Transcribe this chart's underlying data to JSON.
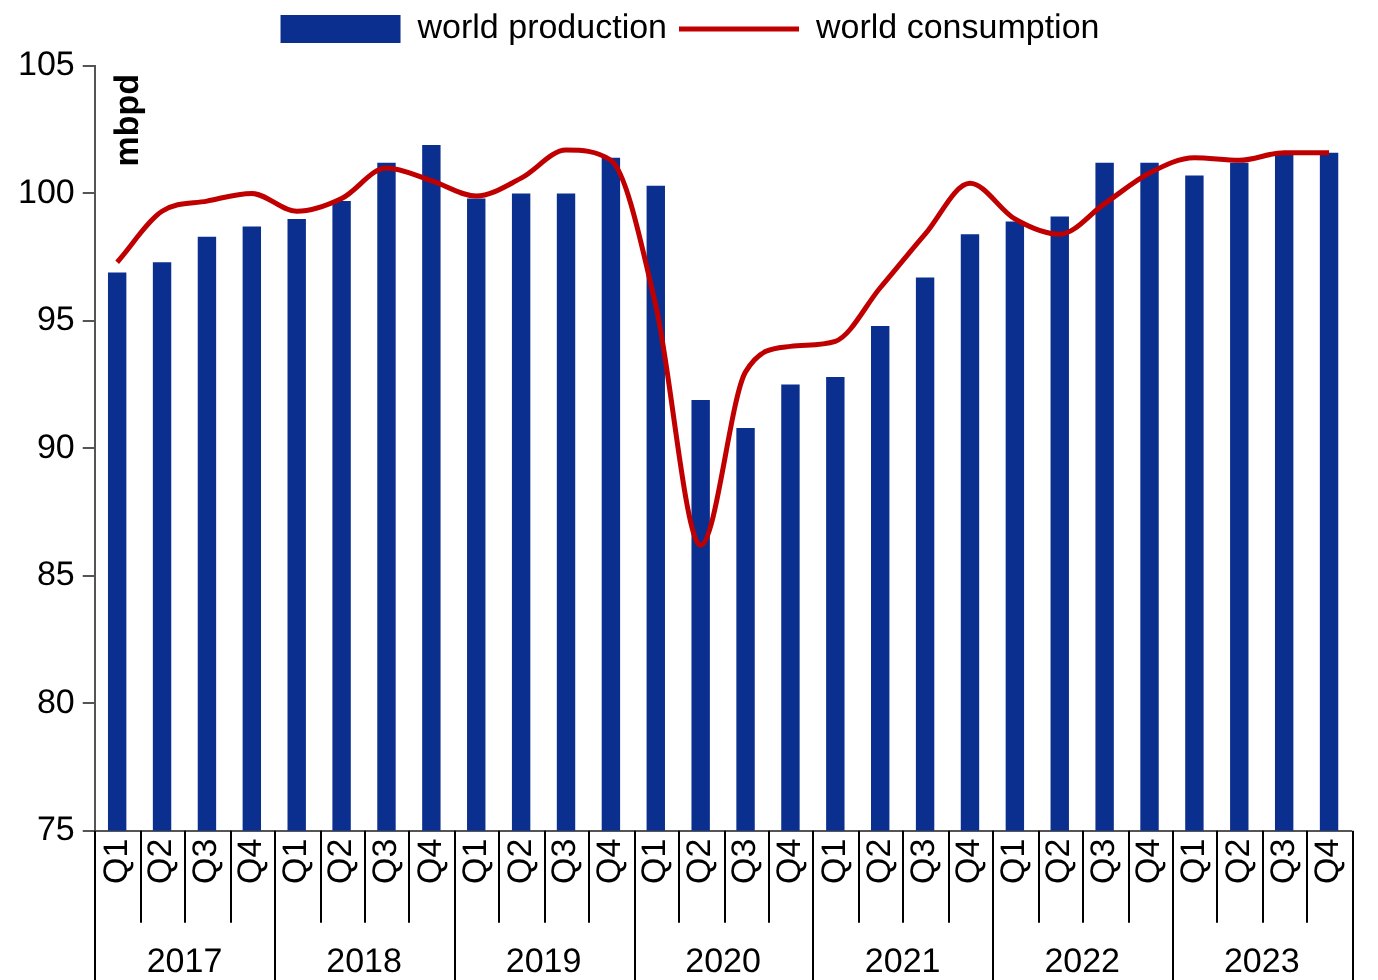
{
  "chart_data": {
    "type": "bar",
    "ylabel": "mbpd",
    "categories": [
      "Q1",
      "Q2",
      "Q3",
      "Q4",
      "Q1",
      "Q2",
      "Q3",
      "Q4",
      "Q1",
      "Q2",
      "Q3",
      "Q4",
      "Q1",
      "Q2",
      "Q3",
      "Q4",
      "Q1",
      "Q2",
      "Q3",
      "Q4",
      "Q1",
      "Q2",
      "Q3",
      "Q4",
      "Q1",
      "Q2",
      "Q3",
      "Q4"
    ],
    "annotations": [
      "2017",
      "2018",
      "2019",
      "2020",
      "2021",
      "2022",
      "2023"
    ],
    "series": [
      {
        "name": "world production",
        "color": "#0b2f8e",
        "values": [
          96.9,
          97.3,
          98.3,
          98.7,
          99.0,
          99.7,
          101.2,
          101.9,
          99.8,
          100.0,
          100.0,
          101.4,
          100.3,
          91.9,
          90.8,
          92.5,
          92.8,
          94.8,
          96.7,
          98.4,
          98.9,
          99.1,
          101.2,
          101.2,
          100.7,
          101.2,
          101.6,
          101.6
        ]
      },
      {
        "name": "world consumption",
        "type": "line",
        "color": "#c00000",
        "values": [
          97.3,
          99.3,
          99.7,
          100.0,
          99.3,
          99.8,
          101.0,
          100.5,
          99.9,
          100.6,
          101.7,
          101.3,
          95.6,
          86.2,
          93.0,
          94.0,
          94.2,
          96.3,
          98.4,
          100.4,
          99.0,
          98.4,
          99.6,
          100.8,
          101.4,
          101.3,
          101.6,
          101.6
        ]
      }
    ],
    "ylim": [
      75,
      105
    ],
    "yticks": [
      75,
      80,
      85,
      90,
      95,
      100,
      105
    ],
    "grid": false,
    "legend": "top"
  }
}
